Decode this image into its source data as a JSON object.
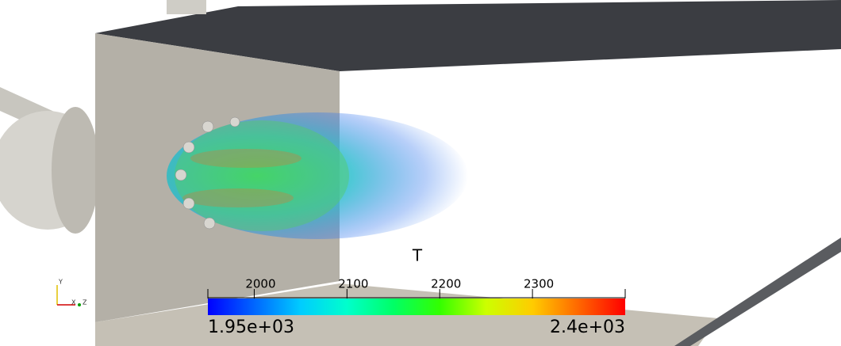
{
  "color_legend": {
    "title": "T",
    "range": [
      1950,
      2400
    ],
    "range_labels": [
      {
        "value": 1950,
        "label": "1.95e+03"
      },
      {
        "value": 2400,
        "label": "2.4e+03"
      }
    ],
    "ticks": [
      2000,
      2100,
      2200,
      2300
    ],
    "colormap": [
      "#0000ff",
      "#0066ff",
      "#00ccff",
      "#00ffcc",
      "#00ff66",
      "#33ff00",
      "#ccff00",
      "#ffcc00",
      "#ff6600",
      "#ff0000"
    ]
  },
  "axes": {
    "labels": [
      "Y",
      "X",
      "Z"
    ]
  }
}
